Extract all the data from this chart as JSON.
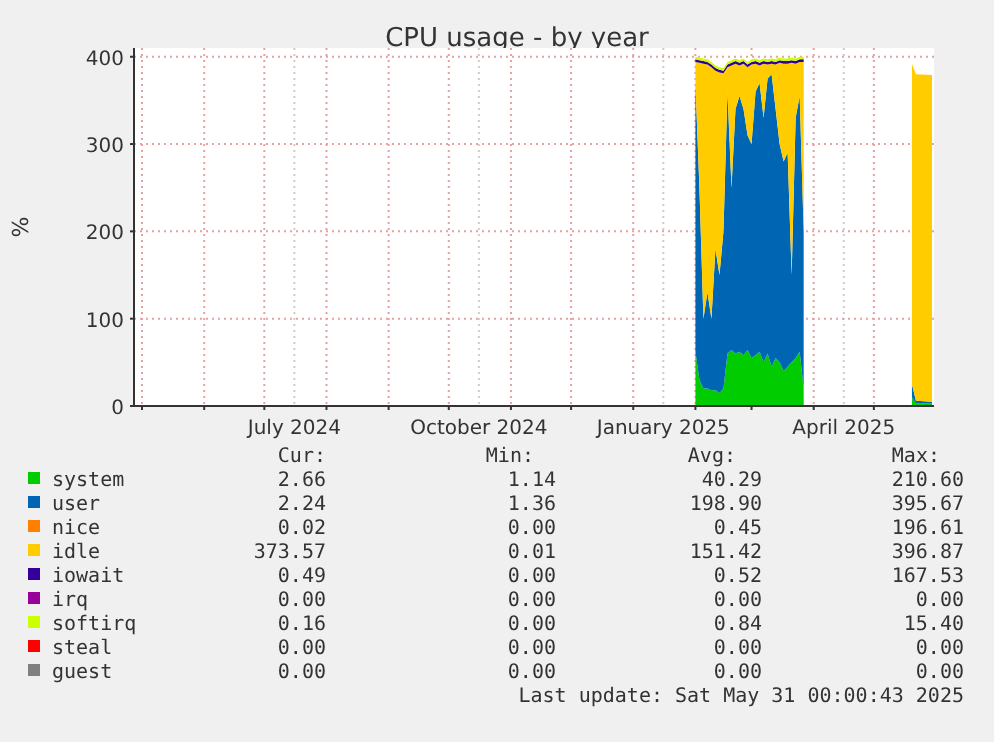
{
  "chart_data": {
    "type": "area",
    "stacked": true,
    "title": "CPU usage - by year",
    "ylabel": "%",
    "x": [
      "2025-02-01",
      "2025-02-03",
      "2025-02-05",
      "2025-02-07",
      "2025-02-09",
      "2025-02-11",
      "2025-02-13",
      "2025-02-15",
      "2025-02-17",
      "2025-02-19",
      "2025-02-21",
      "2025-02-23",
      "2025-02-25",
      "2025-02-27",
      "2025-03-01",
      "2025-03-03",
      "2025-03-05",
      "2025-03-07",
      "2025-03-09",
      "2025-03-11",
      "2025-03-13",
      "2025-03-15",
      "2025-03-17",
      "2025-03-19",
      "2025-03-21",
      "2025-03-23",
      "2025-03-25",
      "2025-03-27",
      "2025-03-28",
      "2025-05-19",
      "2025-05-20",
      "2025-05-22",
      "2025-05-30"
    ],
    "series": [
      {
        "name": "system",
        "color": "#00cc00",
        "values": [
          62,
          30,
          20,
          20,
          18,
          18,
          15,
          20,
          60,
          64,
          60,
          62,
          58,
          64,
          55,
          58,
          62,
          50,
          60,
          45,
          55,
          50,
          40,
          45,
          50,
          55,
          62,
          20,
          null,
          null,
          10,
          3,
          3
        ]
      },
      {
        "name": "user",
        "color": "#0066b3",
        "values": [
          308,
          220,
          80,
          110,
          82,
          162,
          135,
          180,
          300,
          186,
          280,
          293,
          282,
          246,
          245,
          302,
          308,
          280,
          315,
          335,
          285,
          250,
          240,
          245,
          100,
          275,
          293,
          180,
          null,
          null,
          15,
          3,
          2
        ]
      },
      {
        "name": "nice",
        "color": "#ff8000",
        "values": [
          null,
          null,
          null,
          null,
          null,
          null,
          null,
          null,
          null,
          null,
          null,
          null,
          null,
          null,
          null,
          null,
          null,
          null,
          null,
          null,
          null,
          null,
          null,
          null,
          null,
          null,
          null,
          null,
          null,
          null,
          null,
          null,
          null
        ]
      },
      {
        "name": "idle",
        "color": "#ffcc00",
        "values": [
          24,
          143,
          292,
          261,
          288,
          204,
          232,
          181,
          28,
          140,
          52,
          35,
          52,
          78,
          91,
          32,
          20,
          62,
          16,
          12,
          51,
          93,
          112,
          102,
          243,
          62,
          39,
          194,
          null,
          null,
          367,
          374,
          374
        ]
      },
      {
        "name": "iowait",
        "color": "#330099",
        "values": [
          3,
          3,
          3,
          3,
          3,
          3,
          3,
          3,
          3,
          3,
          3,
          3,
          3,
          3,
          3,
          3,
          3,
          3,
          3,
          3,
          3,
          3,
          3,
          3,
          3,
          3,
          3,
          3,
          null,
          null,
          null,
          null,
          null
        ]
      },
      {
        "name": "irq",
        "color": "#990099",
        "values": [
          null,
          null,
          null,
          null,
          null,
          null,
          null,
          null,
          null,
          null,
          null,
          null,
          null,
          null,
          null,
          null,
          null,
          null,
          null,
          null,
          null,
          null,
          null,
          null,
          null,
          null,
          null,
          null,
          null,
          null,
          null,
          null,
          null
        ]
      },
      {
        "name": "softirq",
        "color": "#ccff00",
        "values": [
          3,
          3,
          3,
          3,
          3,
          3,
          3,
          3,
          3,
          3,
          3,
          3,
          3,
          3,
          3,
          3,
          3,
          3,
          3,
          3,
          3,
          3,
          3,
          3,
          3,
          3,
          3,
          3,
          null,
          null,
          null,
          null,
          null
        ]
      },
      {
        "name": "steal",
        "color": "#ff0000",
        "values": [
          null,
          null,
          null,
          null,
          null,
          null,
          null,
          null,
          null,
          null,
          null,
          null,
          null,
          null,
          null,
          null,
          null,
          null,
          null,
          null,
          null,
          null,
          null,
          null,
          null,
          null,
          null,
          null,
          null,
          null,
          null,
          null,
          null
        ]
      },
      {
        "name": "guest",
        "color": "#808080",
        "values": [
          null,
          null,
          null,
          null,
          null,
          null,
          null,
          null,
          null,
          null,
          null,
          null,
          null,
          null,
          null,
          null,
          null,
          null,
          null,
          null,
          null,
          null,
          null,
          null,
          null,
          null,
          null,
          null,
          null,
          null,
          null,
          null,
          null
        ]
      }
    ],
    "xlim": [
      "2024-04-27",
      "2025-05-31"
    ],
    "xticks": [
      {
        "value": "2024-05-01",
        "label": null
      },
      {
        "value": "2024-06-01",
        "label": null
      },
      {
        "value": "2024-07-01",
        "label": null
      },
      {
        "value": "2024-07-16",
        "label": "July 2024"
      },
      {
        "value": "2024-08-01",
        "label": null
      },
      {
        "value": "2024-09-01",
        "label": null
      },
      {
        "value": "2024-10-01",
        "label": null
      },
      {
        "value": "2024-10-16",
        "label": "October 2024"
      },
      {
        "value": "2024-11-01",
        "label": null
      },
      {
        "value": "2024-12-01",
        "label": null
      },
      {
        "value": "2025-01-01",
        "label": null
      },
      {
        "value": "2025-01-16",
        "label": "January 2025"
      },
      {
        "value": "2025-02-01",
        "label": null
      },
      {
        "value": "2025-03-01",
        "label": null
      },
      {
        "value": "2025-04-01",
        "label": null
      },
      {
        "value": "2025-04-16",
        "label": "April 2025"
      },
      {
        "value": "2025-05-01",
        "label": null
      }
    ],
    "ylim": [
      0,
      410
    ],
    "yticks": [
      0,
      100,
      200,
      300,
      400
    ],
    "grid": true,
    "legend": "bottom",
    "annotations": [
      "Cur:",
      "Min:",
      "Avg:",
      "Max:",
      "2.66",
      "1.14",
      "40.29",
      "210.60",
      "2.24",
      "1.36",
      "198.90",
      "395.67",
      "0.02",
      "0.00",
      "0.45",
      "196.61",
      "373.57",
      "0.01",
      "151.42",
      "396.87",
      "0.49",
      "0.00",
      "0.52",
      "167.53",
      "0.00",
      "0.00",
      "0.00",
      "0.00",
      "0.16",
      "0.00",
      "0.84",
      "15.40",
      "0.00",
      "0.00",
      "0.00",
      "0.00",
      "0.00",
      "0.00",
      "0.00",
      "0.00",
      "Last update: Sat May 31 00:00:43 2025"
    ]
  }
}
